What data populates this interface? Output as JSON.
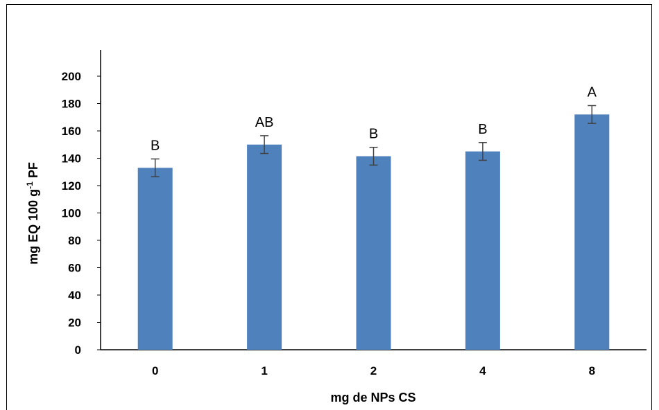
{
  "chart_data": {
    "type": "bar",
    "categories": [
      "0",
      "1",
      "2",
      "4",
      "8"
    ],
    "values": [
      133,
      150,
      141.5,
      145,
      172
    ],
    "errors": [
      6.5,
      6.5,
      6.5,
      6.5,
      6.5
    ],
    "significance_labels": [
      "B",
      "AB",
      "B",
      "B",
      "A"
    ],
    "xlabel": "mg de NPs CS",
    "ylabel": {
      "main": "mg EQ 100 g",
      "superscript": "-1",
      "suffix": " PF"
    },
    "ylim": [
      0,
      200
    ],
    "yticks": [
      "0",
      "20",
      "40",
      "60",
      "80",
      "100",
      "120",
      "140",
      "160",
      "180",
      "200"
    ],
    "bar_color": "#4F81BD",
    "error_bar_color": "#404040",
    "grid": false,
    "legend": "none"
  }
}
